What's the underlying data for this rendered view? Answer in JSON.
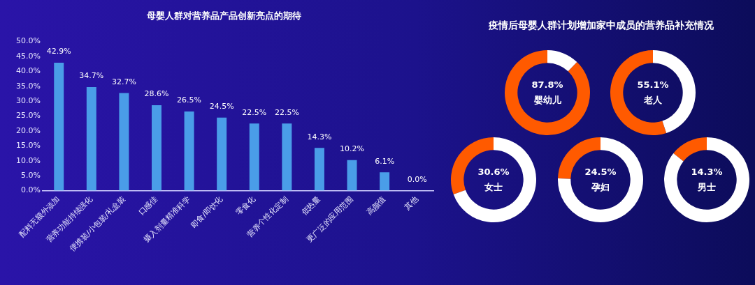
{
  "chart_data": [
    {
      "type": "bar",
      "title": "母婴人群对营养品产品创新亮点的期待",
      "categories": [
        "配料无额外添加",
        "营养功能持续强化",
        "便携装/小包装/礼盒装",
        "口感佳",
        "摄入剂量精准科学",
        "即食/即饮化",
        "零食化",
        "营养个性化定制",
        "低热量",
        "更广泛的应用范围",
        "高颜值",
        "其他"
      ],
      "values": [
        42.9,
        34.7,
        32.7,
        28.6,
        26.5,
        24.5,
        22.5,
        22.5,
        14.3,
        10.2,
        6.1,
        0.0
      ],
      "value_labels": [
        "42.9%",
        "34.7%",
        "32.7%",
        "28.6%",
        "26.5%",
        "24.5%",
        "22.5%",
        "22.5%",
        "14.3%",
        "10.2%",
        "6.1%",
        "0.0%"
      ],
      "color": "#4a9de8",
      "ylim": [
        0,
        50
      ],
      "yticks": [
        {
          "value": 0,
          "label": "0.0%"
        },
        {
          "value": 5,
          "label": "5.0%"
        },
        {
          "value": 10,
          "label": "10.0%"
        },
        {
          "value": 15,
          "label": "15.0%"
        },
        {
          "value": 20,
          "label": "20.0%"
        },
        {
          "value": 25,
          "label": "25.0%"
        },
        {
          "value": 30,
          "label": "30.0%"
        },
        {
          "value": 35,
          "label": "35.0%"
        },
        {
          "value": 40,
          "label": "40.0%"
        },
        {
          "value": 45,
          "label": "45.0%"
        },
        {
          "value": 50,
          "label": "50.0%"
        }
      ],
      "grid": false,
      "legend": false
    },
    {
      "type": "donut",
      "title": "疫情后母婴人群计划增加家中成员的营养品补充情况",
      "categories": [
        "婴幼儿",
        null
      ],
      "values": [
        87.8,
        12.2
      ],
      "colors": [
        "#ff5a00",
        "#ffffff"
      ],
      "value_labels": [
        "87.8%",
        null
      ],
      "legend": false
    },
    {
      "type": "donut",
      "categories": [
        "老人",
        null
      ],
      "values": [
        55.1,
        44.9
      ],
      "colors": [
        "#ff5a00",
        "#ffffff"
      ],
      "value_labels": [
        "55.1%",
        null
      ],
      "legend": false
    },
    {
      "type": "donut",
      "categories": [
        "女士",
        null
      ],
      "values": [
        30.6,
        69.4
      ],
      "colors": [
        "#ff5a00",
        "#ffffff"
      ],
      "value_labels": [
        "30.6%",
        null
      ],
      "legend": false
    },
    {
      "type": "donut",
      "categories": [
        "孕妇",
        null
      ],
      "values": [
        24.5,
        75.5
      ],
      "colors": [
        "#ff5a00",
        "#ffffff"
      ],
      "value_labels": [
        "24.5%",
        null
      ],
      "legend": false
    },
    {
      "type": "donut",
      "categories": [
        "男士",
        null
      ],
      "values": [
        14.3,
        85.7
      ],
      "colors": [
        "#ff5a00",
        "#ffffff"
      ],
      "value_labels": [
        "14.3%",
        null
      ],
      "legend": false
    }
  ]
}
